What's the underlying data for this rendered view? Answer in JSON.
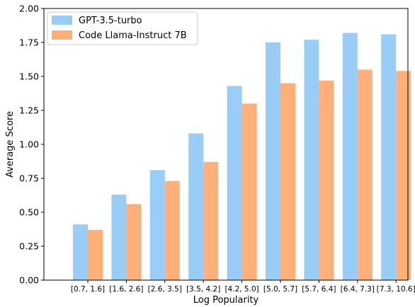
{
  "chart_data": {
    "type": "bar",
    "categories": [
      "[0.7, 1.6]",
      "[1.6, 2.6]",
      "[2.6, 3.5]",
      "[3.5, 4.2]",
      "[4.2, 5.0]",
      "[5.0, 5.7]",
      "[5.7, 6.4]",
      "[6.4, 7.3]",
      "[7.3, 10.6]"
    ],
    "series": [
      {
        "name": "GPT-3.5-turbo",
        "color": "#99cdf5",
        "values": [
          0.41,
          0.63,
          0.81,
          1.08,
          1.43,
          1.75,
          1.77,
          1.82,
          1.81
        ]
      },
      {
        "name": "Code Llama-Instruct 7B",
        "color": "#ffb07a",
        "values": [
          0.37,
          0.56,
          0.73,
          0.87,
          1.3,
          1.45,
          1.47,
          1.55,
          1.54
        ]
      }
    ],
    "xlabel": "Log Popularity",
    "ylabel": "Average Score",
    "ylim": [
      0,
      2.0
    ],
    "yticks": [
      "0.00",
      "0.25",
      "0.50",
      "0.75",
      "1.00",
      "1.25",
      "1.50",
      "1.75",
      "2.00"
    ],
    "legend_position": "top-left",
    "grid": false
  }
}
